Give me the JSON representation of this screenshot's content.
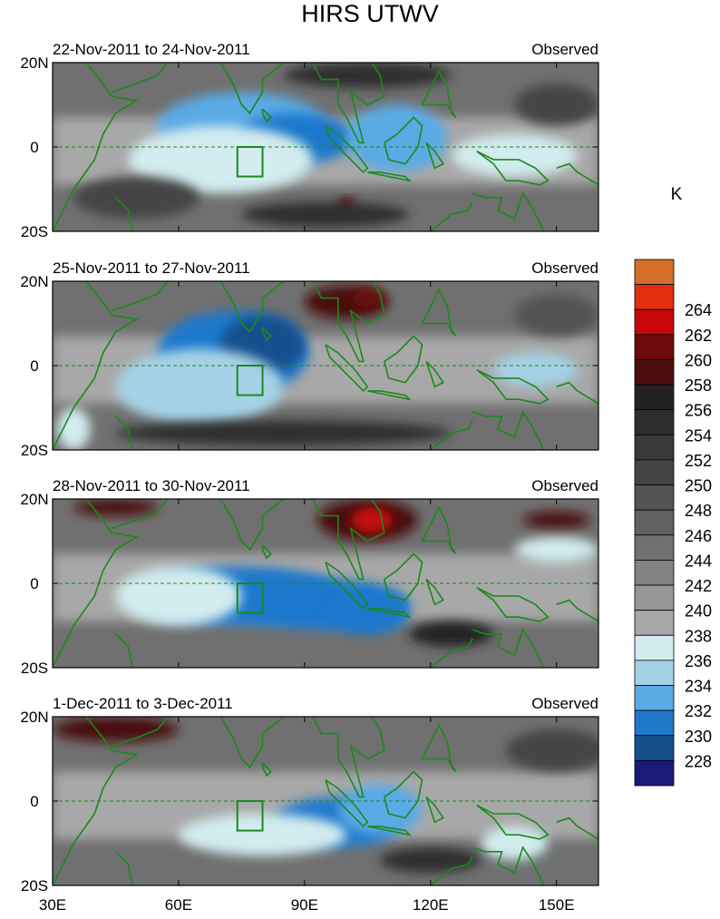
{
  "chart_data": {
    "type": "heatmap",
    "title": "HIRS UTWV",
    "colorbar": {
      "unit": "K",
      "levels": [
        "228",
        "230",
        "232",
        "234",
        "236",
        "238",
        "240",
        "242",
        "244",
        "246",
        "248",
        "250",
        "252",
        "254",
        "256",
        "258",
        "260",
        "262",
        "264"
      ],
      "colors": [
        "#1a1a7a",
        "#14508e",
        "#1e78cc",
        "#5aaae6",
        "#a5d2e6",
        "#d2ecef",
        "#a8a8a8",
        "#969696",
        "#828282",
        "#707070",
        "#616161",
        "#535353",
        "#454545",
        "#393939",
        "#2e2e2e",
        "#222222",
        "#4a0c0c",
        "#6e0a0a",
        "#c80808",
        "#e03010",
        "#d26e28"
      ]
    },
    "x_ticks": [
      "30E",
      "60E",
      "90E",
      "120E",
      "150E"
    ],
    "x_values": [
      30,
      60,
      90,
      120,
      150
    ],
    "xlim": [
      30,
      160
    ],
    "y_ticks": [
      "20N",
      "0",
      "20S"
    ],
    "y_values": [
      20,
      0,
      -20
    ],
    "ylim": [
      -20,
      20
    ],
    "box": {
      "lon": [
        74,
        80
      ],
      "lat": [
        -7,
        0
      ]
    },
    "panels": [
      {
        "period": "22-Nov-2011 to 24-Nov-2011",
        "label": "Observed",
        "features": [
          {
            "lon": 75,
            "lat": 5,
            "rlon": 20,
            "rlat": 8,
            "value": 232
          },
          {
            "lon": 88,
            "lat": 2,
            "rlon": 14,
            "rlat": 6,
            "value": 231
          },
          {
            "lon": 112,
            "lat": 2,
            "rlon": 12,
            "rlat": 8,
            "value": 232
          },
          {
            "lon": 70,
            "lat": -3,
            "rlon": 22,
            "rlat": 8,
            "value": 236
          },
          {
            "lon": 140,
            "lat": -2,
            "rlon": 15,
            "rlat": 5,
            "value": 237
          },
          {
            "lon": 105,
            "lat": 17,
            "rlon": 20,
            "rlat": 3,
            "value": 254
          },
          {
            "lon": 95,
            "lat": -16,
            "rlon": 20,
            "rlat": 3,
            "value": 254
          },
          {
            "lon": 100,
            "lat": -13,
            "rlon": 2,
            "rlat": 1,
            "value": 259
          },
          {
            "lon": 50,
            "lat": -12,
            "rlon": 15,
            "rlat": 5,
            "value": 250
          },
          {
            "lon": 150,
            "lat": 10,
            "rlon": 10,
            "rlat": 5,
            "value": 250
          }
        ]
      },
      {
        "period": "25-Nov-2011 to 27-Nov-2011",
        "label": "Observed",
        "features": [
          {
            "lon": 73,
            "lat": 3,
            "rlon": 18,
            "rlat": 10,
            "value": 230
          },
          {
            "lon": 80,
            "lat": 5,
            "rlon": 10,
            "rlat": 7,
            "value": 229
          },
          {
            "lon": 65,
            "lat": -5,
            "rlon": 20,
            "rlat": 9,
            "value": 234
          },
          {
            "lon": 100,
            "lat": 15,
            "rlon": 10,
            "rlat": 4,
            "value": 258
          },
          {
            "lon": 105,
            "lat": 16,
            "rlon": 4,
            "rlat": 2,
            "value": 260
          },
          {
            "lon": 85,
            "lat": -16,
            "rlon": 40,
            "rlat": 3,
            "value": 254
          },
          {
            "lon": 145,
            "lat": -1,
            "rlon": 10,
            "rlat": 4,
            "value": 235
          },
          {
            "lon": 35,
            "lat": -15,
            "rlon": 4,
            "rlat": 5,
            "value": 237
          },
          {
            "lon": 150,
            "lat": 12,
            "rlon": 10,
            "rlat": 5,
            "value": 249
          }
        ]
      },
      {
        "period": "28-Nov-2011 to 30-Nov-2011",
        "label": "Observed",
        "features": [
          {
            "lon": 75,
            "lat": -3,
            "rlon": 25,
            "rlat": 7,
            "value": 231
          },
          {
            "lon": 95,
            "lat": -5,
            "rlon": 20,
            "rlat": 6,
            "value": 230
          },
          {
            "lon": 105,
            "lat": -7,
            "rlon": 10,
            "rlat": 5,
            "value": 231
          },
          {
            "lon": 60,
            "lat": -3,
            "rlon": 15,
            "rlat": 7,
            "value": 236
          },
          {
            "lon": 105,
            "lat": 15,
            "rlon": 12,
            "rlat": 5,
            "value": 258
          },
          {
            "lon": 106,
            "lat": 15,
            "rlon": 5,
            "rlat": 3,
            "value": 263
          },
          {
            "lon": 45,
            "lat": 18,
            "rlon": 10,
            "rlat": 2,
            "value": 258
          },
          {
            "lon": 150,
            "lat": 15,
            "rlon": 8,
            "rlat": 2,
            "value": 259
          },
          {
            "lon": 125,
            "lat": -12,
            "rlon": 10,
            "rlat": 3,
            "value": 257
          },
          {
            "lon": 150,
            "lat": 8,
            "rlon": 10,
            "rlat": 3,
            "value": 236
          }
        ]
      },
      {
        "period": "1-Dec-2011 to 3-Dec-2011",
        "label": "Observed",
        "features": [
          {
            "lon": 98,
            "lat": -5,
            "rlon": 15,
            "rlat": 6,
            "value": 230
          },
          {
            "lon": 90,
            "lat": -7,
            "rlon": 3,
            "rlat": 1.5,
            "value": 228
          },
          {
            "lon": 108,
            "lat": -2,
            "rlon": 10,
            "rlat": 6,
            "value": 232
          },
          {
            "lon": 80,
            "lat": -8,
            "rlon": 20,
            "rlat": 5,
            "value": 236
          },
          {
            "lon": 45,
            "lat": 17,
            "rlon": 15,
            "rlat": 3,
            "value": 258
          },
          {
            "lon": 140,
            "lat": -10,
            "rlon": 8,
            "rlat": 4,
            "value": 236
          },
          {
            "lon": 150,
            "lat": 12,
            "rlon": 12,
            "rlat": 5,
            "value": 250
          },
          {
            "lon": 120,
            "lat": -14,
            "rlon": 12,
            "rlat": 3,
            "value": 254
          }
        ]
      }
    ]
  }
}
